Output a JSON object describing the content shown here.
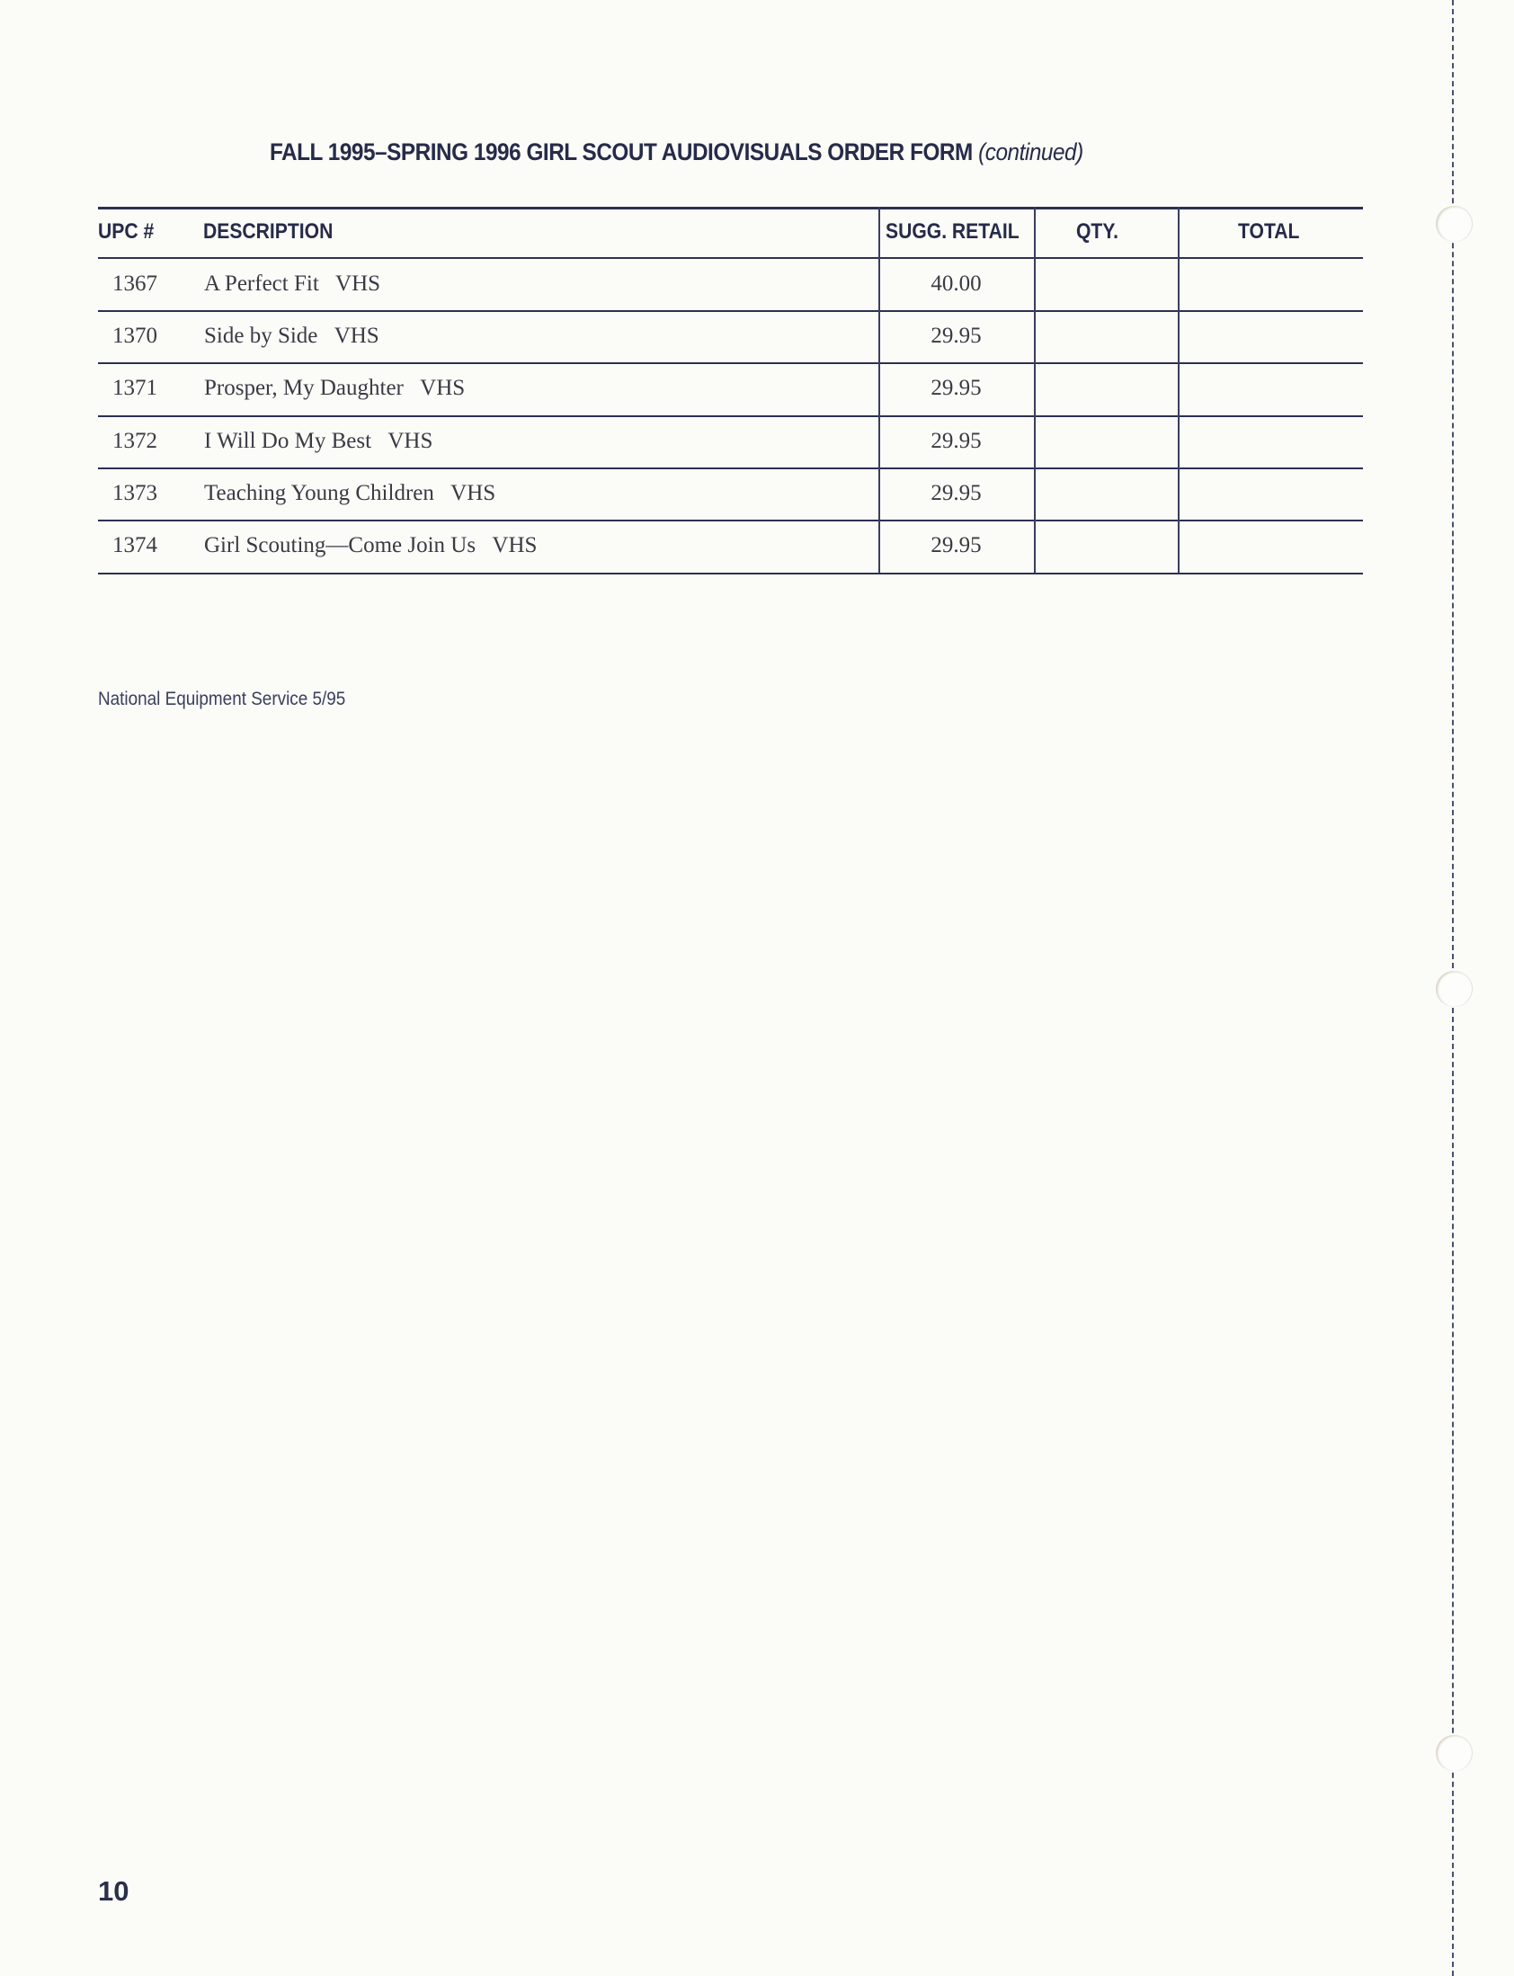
{
  "title": {
    "main": "FALL 1995–SPRING 1996 GIRL SCOUT AUDIOVISUALS ORDER FORM",
    "suffix": "(continued)"
  },
  "table": {
    "headers": [
      "UPC #",
      "DESCRIPTION",
      "SUGG. RETAIL",
      "QTY.",
      "TOTAL"
    ],
    "rows": [
      {
        "upc": "1367",
        "description": "A Perfect Fit   VHS",
        "price": "40.00",
        "qty": "",
        "total": ""
      },
      {
        "upc": "1370",
        "description": "Side by Side   VHS",
        "price": "29.95",
        "qty": "",
        "total": ""
      },
      {
        "upc": "1371",
        "description": "Prosper, My Daughter   VHS",
        "price": "29.95",
        "qty": "",
        "total": ""
      },
      {
        "upc": "1372",
        "description": "I Will Do My Best   VHS",
        "price": "29.95",
        "qty": "",
        "total": ""
      },
      {
        "upc": "1373",
        "description": "Teaching Young Children   VHS",
        "price": "29.95",
        "qty": "",
        "total": ""
      },
      {
        "upc": "1374",
        "description": "Girl Scouting—Come Join Us   VHS",
        "price": "29.95",
        "qty": "",
        "total": ""
      }
    ]
  },
  "footer": "National Equipment Service  5/95",
  "page_number": "10",
  "colors": {
    "ink": "#262b48",
    "paper": "#fbfbf8"
  }
}
